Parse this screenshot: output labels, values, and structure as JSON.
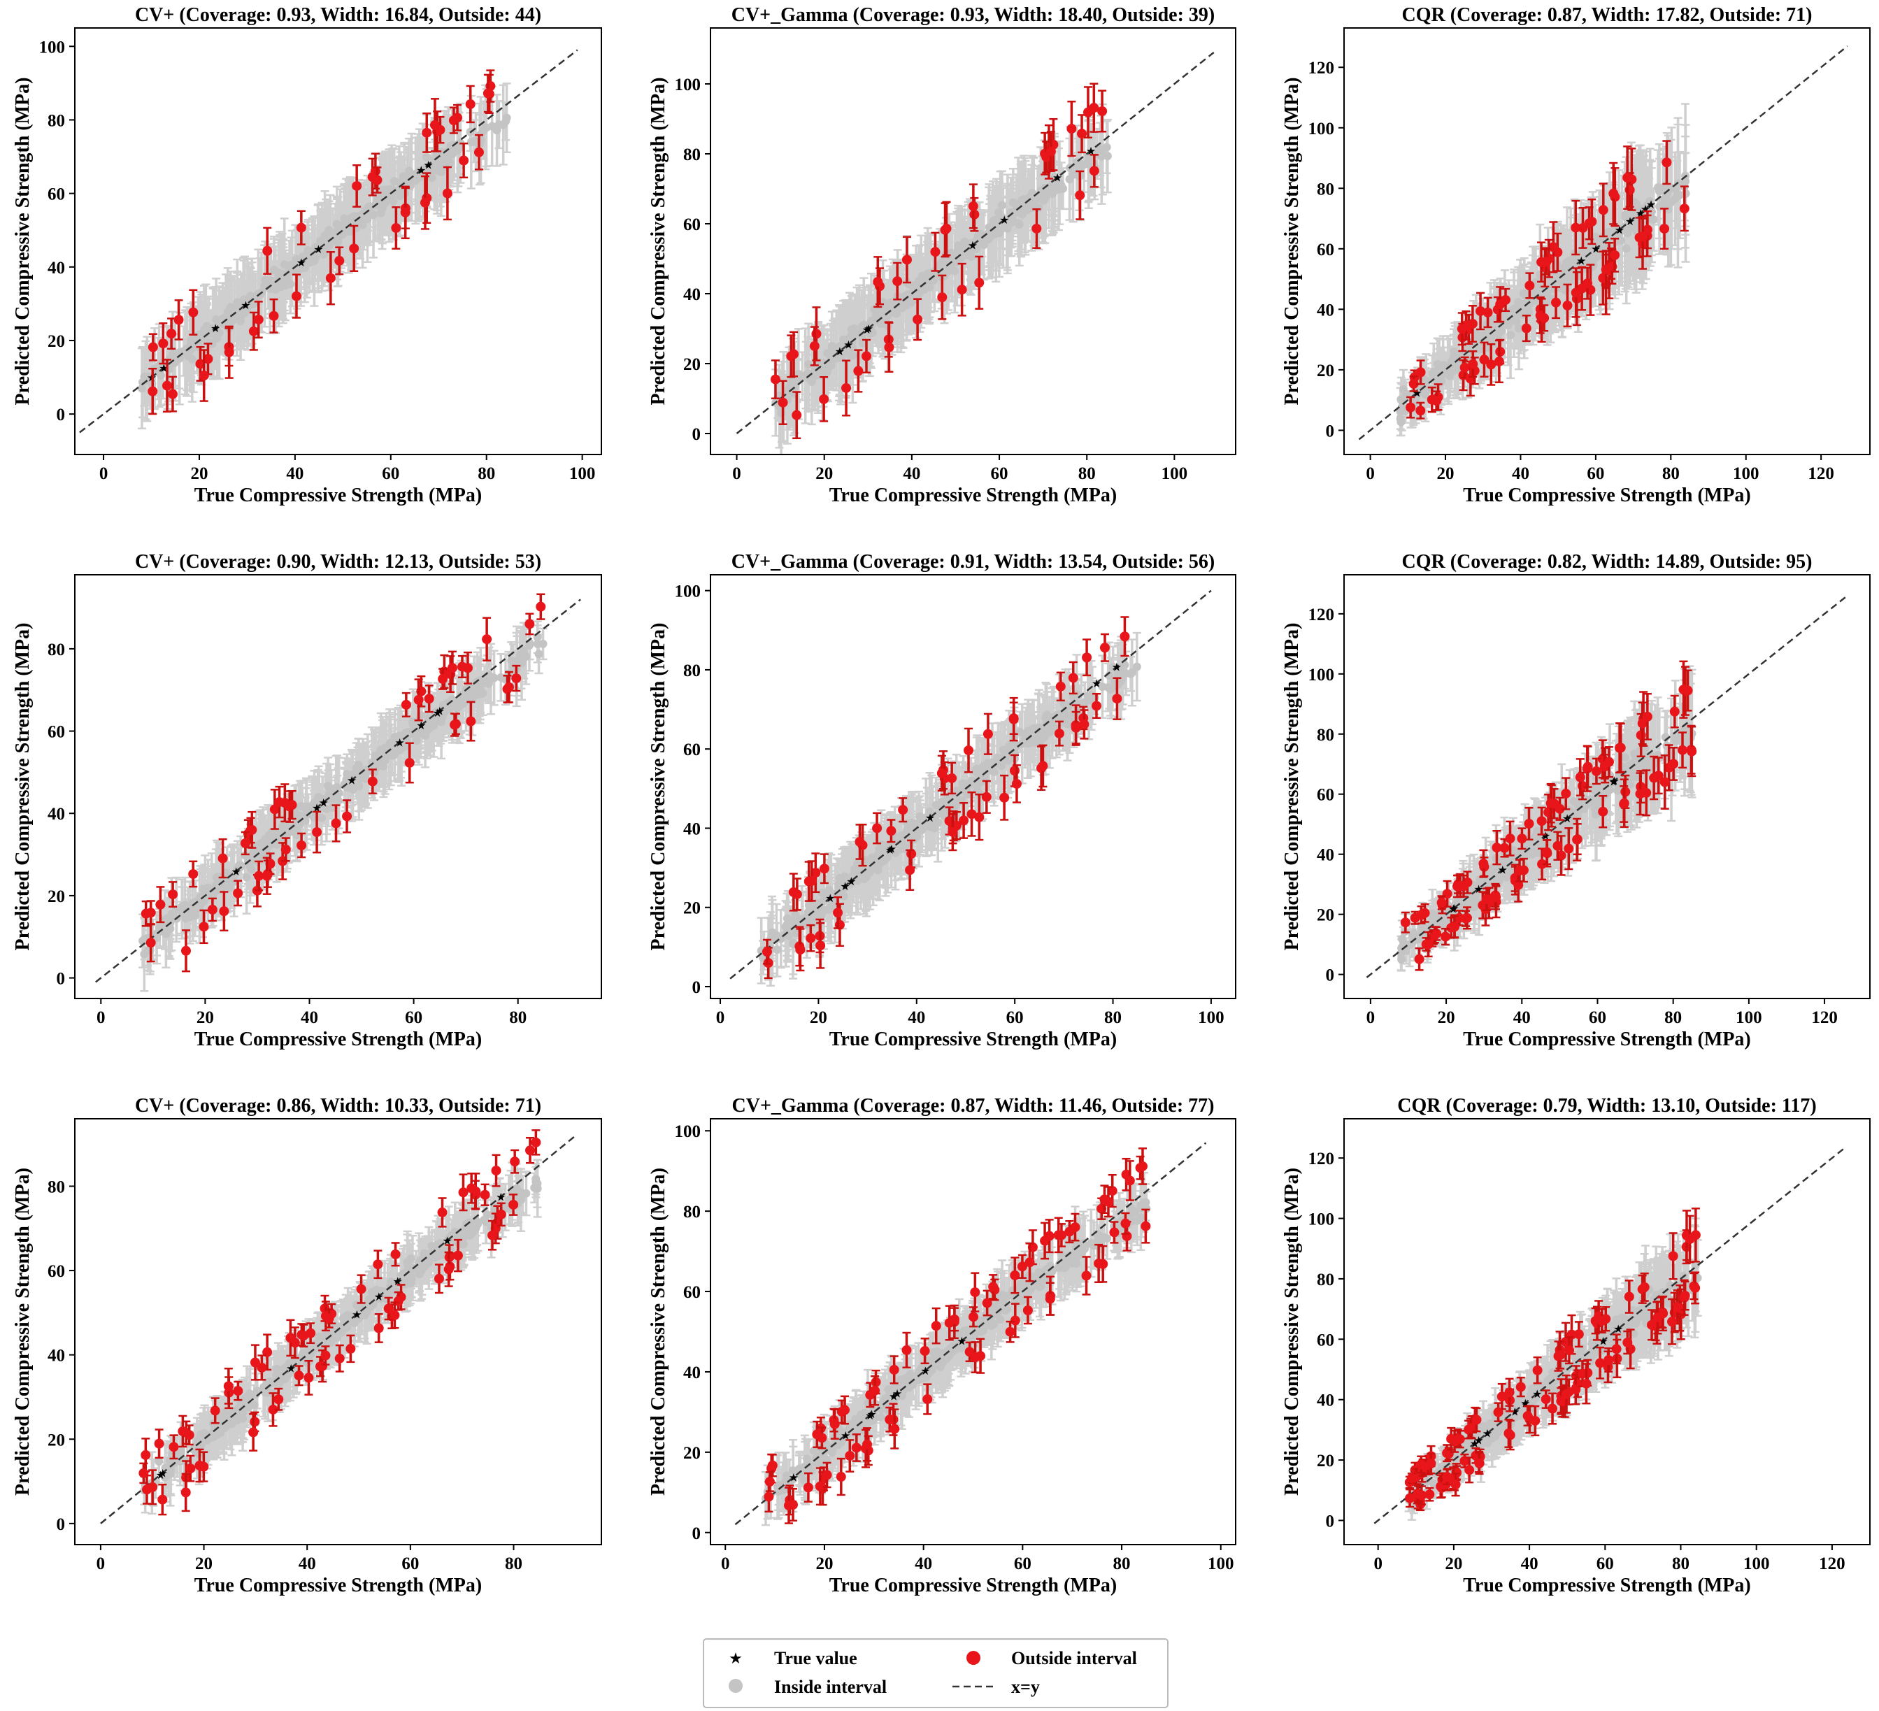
{
  "figure": {
    "xlabel": "True Compressive Strength (MPa)",
    "ylabel": "Predicted Compressive Strength (MPa)"
  },
  "colors": {
    "inside": "#cfcfcf",
    "outside": "#e8161b",
    "outside_bar": "#cc1010",
    "true": "#187318",
    "diag": "#333333"
  },
  "legend": {
    "true_value": "True value",
    "inside_interval": "Inside interval",
    "outside_interval": "Outside interval",
    "diag": "x=y"
  },
  "chart_data": [
    {
      "type": "scatter",
      "method": "CV+",
      "title": "CV+ (Coverage: 0.93, Width: 16.84, Outside: 44)",
      "coverage": 0.93,
      "width": 16.84,
      "outside": 44,
      "xlim": [
        -6,
        104
      ],
      "ylim": [
        -11,
        105
      ],
      "xticks": [
        0,
        20,
        40,
        60,
        80,
        100
      ],
      "yticks": [
        0,
        20,
        40,
        60,
        80,
        100
      ],
      "diag": [
        -5,
        99
      ]
    },
    {
      "type": "scatter",
      "method": "CV+_Gamma",
      "title": "CV+_Gamma (Coverage: 0.93, Width: 18.40, Outside: 39)",
      "coverage": 0.93,
      "width": 18.4,
      "outside": 39,
      "xlim": [
        -6,
        114
      ],
      "ylim": [
        -6,
        116
      ],
      "xticks": [
        0,
        20,
        40,
        60,
        80,
        100
      ],
      "yticks": [
        0,
        20,
        40,
        60,
        80,
        100
      ],
      "diag": [
        0,
        109
      ]
    },
    {
      "type": "scatter",
      "method": "CQR",
      "title": "CQR (Coverage: 0.87, Width: 17.82, Outside: 71)",
      "coverage": 0.87,
      "width": 17.82,
      "outside": 71,
      "xlim": [
        -7,
        133
      ],
      "ylim": [
        -8,
        133
      ],
      "xticks": [
        0,
        20,
        40,
        60,
        80,
        100,
        120
      ],
      "yticks": [
        0,
        20,
        40,
        60,
        80,
        100,
        120
      ],
      "diag": [
        -3,
        127
      ]
    },
    {
      "type": "scatter",
      "method": "CV+",
      "title": "CV+ (Coverage: 0.90, Width: 12.13, Outside: 53)",
      "coverage": 0.9,
      "width": 12.13,
      "outside": 53,
      "xlim": [
        -5,
        96
      ],
      "ylim": [
        -5,
        98
      ],
      "xticks": [
        0,
        20,
        40,
        60,
        80
      ],
      "yticks": [
        0,
        20,
        40,
        60,
        80
      ],
      "diag": [
        -1,
        92
      ]
    },
    {
      "type": "scatter",
      "method": "CV+_Gamma",
      "title": "CV+_Gamma (Coverage: 0.91, Width: 13.54, Outside: 56)",
      "coverage": 0.91,
      "width": 13.54,
      "outside": 56,
      "xlim": [
        -2,
        105
      ],
      "ylim": [
        -3,
        104
      ],
      "xticks": [
        0,
        20,
        40,
        60,
        80,
        100
      ],
      "yticks": [
        0,
        20,
        40,
        60,
        80,
        100
      ],
      "diag": [
        2,
        100
      ]
    },
    {
      "type": "scatter",
      "method": "CQR",
      "title": "CQR (Coverage: 0.82, Width: 14.89, Outside: 95)",
      "coverage": 0.82,
      "width": 14.89,
      "outside": 95,
      "xlim": [
        -7,
        132
      ],
      "ylim": [
        -8,
        133
      ],
      "xticks": [
        0,
        20,
        40,
        60,
        80,
        100,
        120
      ],
      "yticks": [
        0,
        20,
        40,
        60,
        80,
        100,
        120
      ],
      "diag": [
        -1,
        126
      ]
    },
    {
      "type": "scatter",
      "method": "CV+",
      "title": "CV+ (Coverage: 0.86, Width: 10.33, Outside: 71)",
      "coverage": 0.86,
      "width": 10.33,
      "outside": 71,
      "xlim": [
        -5,
        97
      ],
      "ylim": [
        -5,
        96
      ],
      "xticks": [
        0,
        20,
        40,
        60,
        80
      ],
      "yticks": [
        0,
        20,
        40,
        60,
        80
      ],
      "diag": [
        0,
        92
      ]
    },
    {
      "type": "scatter",
      "method": "CV+_Gamma",
      "title": "CV+_Gamma (Coverage: 0.87, Width: 11.46, Outside: 77)",
      "coverage": 0.87,
      "width": 11.46,
      "outside": 77,
      "xlim": [
        -3,
        103
      ],
      "ylim": [
        -3,
        103
      ],
      "xticks": [
        0,
        20,
        40,
        60,
        80,
        100
      ],
      "yticks": [
        0,
        20,
        40,
        60,
        80,
        100
      ],
      "diag": [
        2,
        97
      ]
    },
    {
      "type": "scatter",
      "method": "CQR",
      "title": "CQR (Coverage: 0.79, Width: 13.10, Outside: 117)",
      "coverage": 0.79,
      "width": 13.1,
      "outside": 117,
      "xlim": [
        -9,
        130
      ],
      "ylim": [
        -8,
        133
      ],
      "xticks": [
        0,
        20,
        40,
        60,
        80,
        100,
        120
      ],
      "yticks": [
        0,
        20,
        40,
        60,
        80,
        100,
        120
      ],
      "diag": [
        -1,
        123
      ]
    }
  ]
}
